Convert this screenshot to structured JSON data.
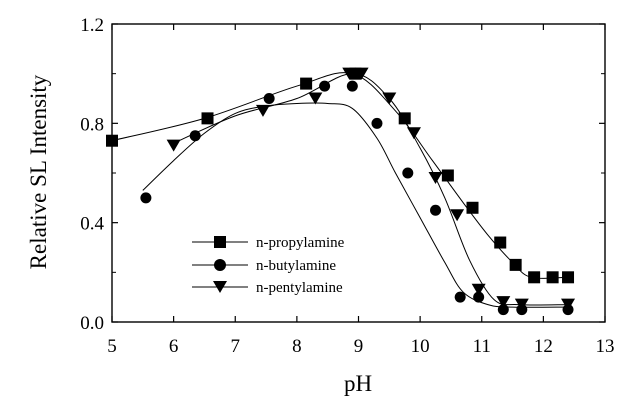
{
  "chart_data": {
    "type": "scatter",
    "xlabel": "pH",
    "ylabel": "Relative SL Intensity",
    "xlim": [
      5,
      13
    ],
    "ylim": [
      0,
      1.2
    ],
    "x_ticks": [
      5,
      6,
      7,
      8,
      9,
      10,
      11,
      12,
      13
    ],
    "y_ticks": [
      0.0,
      0.4,
      0.8,
      1.2
    ],
    "x_tick_labels": [
      "5",
      "6",
      "7",
      "8",
      "9",
      "10",
      "11",
      "12",
      "13"
    ],
    "y_tick_labels": [
      "0.0",
      "0.4",
      "0.8",
      "1.2"
    ],
    "grid": false,
    "legend_position": "lower-left",
    "series": [
      {
        "name": "n-propylamine",
        "marker": "square",
        "x": [
          5.0,
          6.55,
          8.15,
          8.95,
          9.75,
          10.45,
          10.85,
          11.3,
          11.55,
          11.85,
          12.15,
          12.4
        ],
        "y": [
          0.73,
          0.82,
          0.96,
          1.0,
          0.82,
          0.59,
          0.46,
          0.32,
          0.23,
          0.18,
          0.18,
          0.18
        ],
        "curve": [
          [
            5.0,
            0.73
          ],
          [
            6.5,
            0.82
          ],
          [
            8.0,
            0.95
          ],
          [
            8.9,
            1.0
          ],
          [
            9.6,
            0.85
          ],
          [
            10.2,
            0.65
          ],
          [
            10.7,
            0.48
          ],
          [
            11.1,
            0.35
          ],
          [
            11.5,
            0.24
          ],
          [
            11.8,
            0.18
          ],
          [
            12.4,
            0.18
          ]
        ]
      },
      {
        "name": "n-butylamine",
        "marker": "circle",
        "x": [
          5.55,
          6.35,
          7.55,
          8.45,
          8.9,
          9.3,
          9.8,
          10.25,
          10.65,
          10.95,
          11.35,
          11.65,
          12.4
        ],
        "y": [
          0.5,
          0.75,
          0.9,
          0.95,
          0.95,
          0.8,
          0.6,
          0.45,
          0.1,
          0.1,
          0.05,
          0.05,
          0.05
        ],
        "curve": [
          [
            5.5,
            0.53
          ],
          [
            6.0,
            0.65
          ],
          [
            6.5,
            0.76
          ],
          [
            7.0,
            0.84
          ],
          [
            7.5,
            0.87
          ],
          [
            8.0,
            0.88
          ],
          [
            8.5,
            0.88
          ],
          [
            8.9,
            0.86
          ],
          [
            9.3,
            0.74
          ],
          [
            9.6,
            0.6
          ],
          [
            10.0,
            0.42
          ],
          [
            10.4,
            0.24
          ],
          [
            10.7,
            0.12
          ],
          [
            11.1,
            0.07
          ],
          [
            11.5,
            0.06
          ],
          [
            12.4,
            0.06
          ]
        ]
      },
      {
        "name": "n-pentylamine",
        "marker": "triangle-down",
        "x": [
          6.0,
          7.45,
          8.3,
          8.85,
          9.05,
          9.5,
          9.9,
          10.25,
          10.6,
          10.95,
          11.35,
          11.65,
          12.4
        ],
        "y": [
          0.71,
          0.85,
          0.9,
          1.0,
          1.0,
          0.9,
          0.76,
          0.58,
          0.43,
          0.13,
          0.08,
          0.07,
          0.07
        ],
        "curve": [
          [
            6.0,
            0.72
          ],
          [
            7.0,
            0.83
          ],
          [
            8.0,
            0.9
          ],
          [
            8.9,
            1.0
          ],
          [
            9.5,
            0.9
          ],
          [
            10.0,
            0.7
          ],
          [
            10.4,
            0.5
          ],
          [
            10.8,
            0.25
          ],
          [
            11.2,
            0.09
          ],
          [
            11.6,
            0.07
          ],
          [
            12.4,
            0.07
          ]
        ]
      }
    ]
  }
}
